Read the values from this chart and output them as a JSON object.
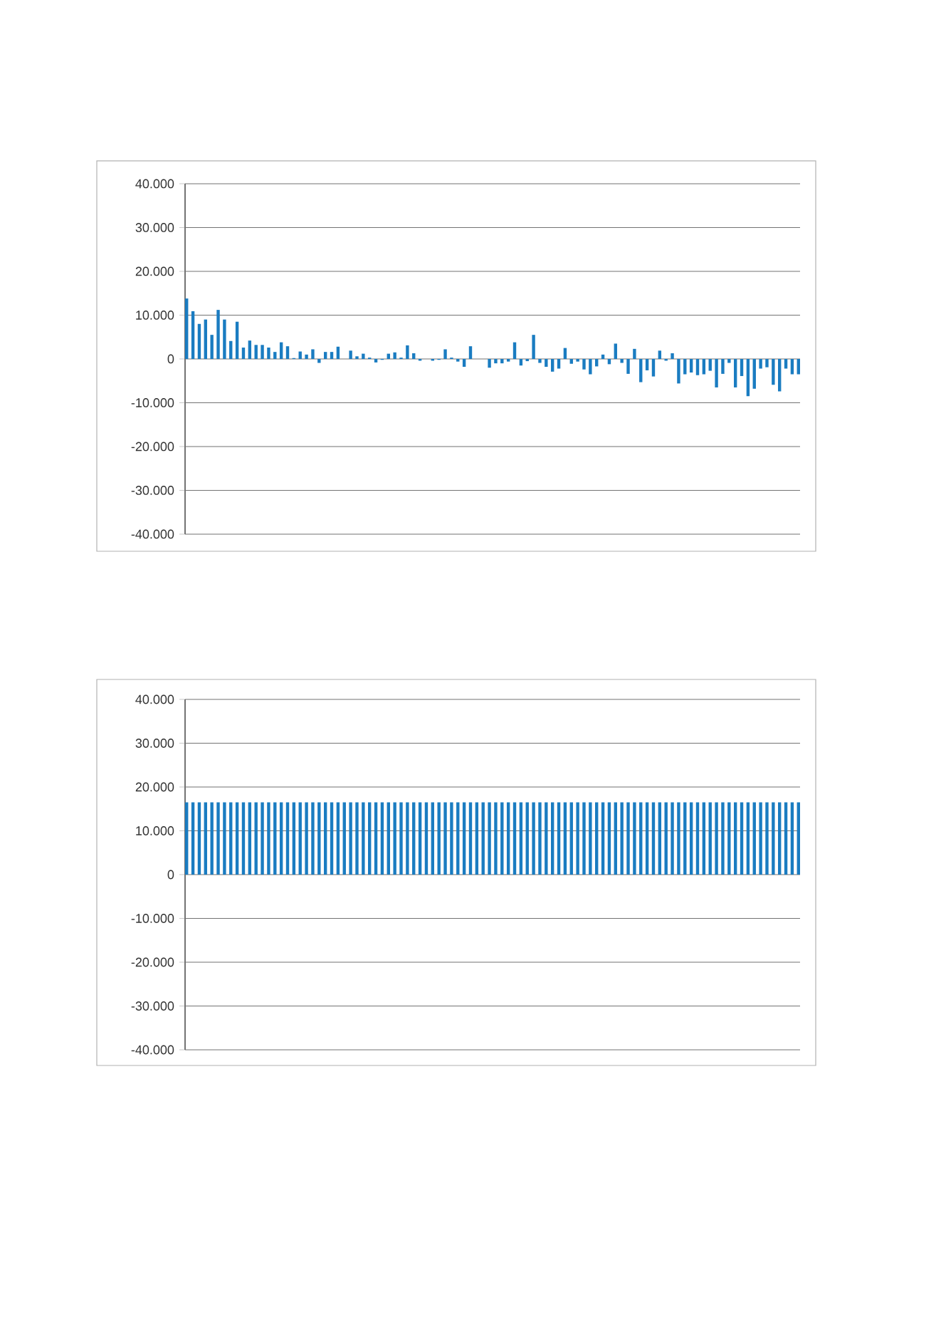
{
  "chart_data": [
    {
      "type": "bar",
      "categories": [
        null,
        null,
        null,
        null,
        null,
        null,
        null,
        null,
        null,
        null,
        null,
        null,
        null,
        null,
        null,
        null,
        null,
        null,
        null,
        null,
        null,
        null,
        null,
        null,
        null,
        null,
        null,
        null,
        null,
        null,
        null,
        null,
        null,
        null,
        null,
        null,
        null,
        null,
        null,
        null,
        null,
        null,
        null,
        null,
        null,
        null,
        null,
        null,
        null,
        null,
        null,
        null,
        null,
        null,
        null,
        null,
        null,
        null,
        null,
        null,
        null,
        null,
        null,
        null,
        null,
        null,
        null,
        null,
        null,
        null,
        null,
        null,
        null,
        null,
        null,
        null,
        null,
        null,
        null,
        null,
        null,
        null,
        null,
        null,
        null,
        null,
        null,
        null,
        null,
        null,
        null,
        null,
        null,
        null,
        null,
        null,
        null,
        null
      ],
      "values": [
        13800,
        10900,
        8000,
        9000,
        5500,
        11200,
        9000,
        4100,
        8500,
        2600,
        4200,
        3200,
        3200,
        2600,
        1600,
        3800,
        2900,
        200,
        1700,
        1000,
        2200,
        -900,
        1600,
        1600,
        2800,
        null,
        1900,
        600,
        1200,
        300,
        -800,
        -200,
        1200,
        1500,
        300,
        3100,
        1300,
        -400,
        null,
        -400,
        -200,
        2200,
        300,
        -600,
        -1800,
        2900,
        null,
        null,
        -2000,
        -1000,
        -1000,
        -600,
        3800,
        -1500,
        -500,
        5500,
        -900,
        -1800,
        -2900,
        -2200,
        2500,
        -1100,
        -600,
        -2400,
        -3500,
        -1700,
        1000,
        -1200,
        3500,
        -900,
        -3400,
        2300,
        -5300,
        -2600,
        -4000,
        1900,
        -400,
        1300,
        -5600,
        -3500,
        -3100,
        -3700,
        -3500,
        -2700,
        -6500,
        -3400,
        -900,
        -6500,
        -3900,
        -8500,
        -6800,
        -2200,
        -1900,
        -5900,
        -7400,
        -2200,
        -3500,
        -3500
      ],
      "color": "#1a7cc1",
      "grid": "y",
      "tick_labels": "y",
      "ylim": [
        -40000,
        40000
      ],
      "yticks": [
        {
          "value": -40000,
          "label": "-40.000"
        },
        {
          "value": -30000,
          "label": "-30.000"
        },
        {
          "value": -20000,
          "label": "-20.000"
        },
        {
          "value": -10000,
          "label": "-10.000"
        },
        0,
        {
          "value": 10000,
          "label": "10.000"
        },
        {
          "value": 20000,
          "label": "20.000"
        },
        {
          "value": 30000,
          "label": "30.000"
        },
        {
          "value": 40000,
          "label": "40.000"
        }
      ]
    },
    {
      "type": "bar",
      "categories": [
        null,
        null,
        null,
        null,
        null,
        null,
        null,
        null,
        null,
        null,
        null,
        null,
        null,
        null,
        null,
        null,
        null,
        null,
        null,
        null,
        null,
        null,
        null,
        null,
        null,
        null,
        null,
        null,
        null,
        null,
        null,
        null,
        null,
        null,
        null,
        null,
        null,
        null,
        null,
        null,
        null,
        null,
        null,
        null,
        null,
        null,
        null,
        null,
        null,
        null,
        null,
        null,
        null,
        null,
        null,
        null,
        null,
        null,
        null,
        null,
        null,
        null,
        null,
        null,
        null,
        null,
        null,
        null,
        null,
        null,
        null,
        null,
        null,
        null,
        null,
        null,
        null,
        null,
        null,
        null,
        null,
        null,
        null,
        null,
        null,
        null,
        null,
        null,
        null,
        null,
        null,
        null,
        null,
        null,
        null,
        null,
        null,
        null
      ],
      "values": [
        16500,
        16500,
        16500,
        16500,
        16500,
        16500,
        16500,
        16500,
        16500,
        16500,
        16500,
        16500,
        16500,
        16500,
        16500,
        16500,
        16500,
        16500,
        16500,
        16500,
        16500,
        16500,
        16500,
        16500,
        16500,
        16500,
        16500,
        16500,
        16500,
        16500,
        16500,
        16500,
        16500,
        16500,
        16500,
        16500,
        16500,
        16500,
        16500,
        16500,
        16500,
        16500,
        16500,
        16500,
        16500,
        16500,
        16500,
        16500,
        16500,
        16500,
        16500,
        16500,
        16500,
        16500,
        16500,
        16500,
        16500,
        16500,
        16500,
        16500,
        16500,
        16500,
        16500,
        16500,
        16500,
        16500,
        16500,
        16500,
        16500,
        16500,
        16500,
        16500,
        16500,
        16500,
        16500,
        16500,
        16500,
        16500,
        16500,
        16500,
        16500,
        16500,
        16500,
        16500,
        16500,
        16500,
        16500,
        16500,
        16500,
        16500,
        16500,
        16500,
        16500,
        16500,
        16500,
        16500,
        16500,
        16500
      ],
      "color": "#1a7cc1",
      "grid": "y",
      "tick_labels": "y",
      "ylim": [
        -40000,
        40000
      ],
      "yticks": [
        {
          "value": -40000,
          "label": "-40.000"
        },
        {
          "value": -30000,
          "label": "-30.000"
        },
        {
          "value": -20000,
          "label": "-20.000"
        },
        {
          "value": -10000,
          "label": "-10.000"
        },
        0,
        {
          "value": 10000,
          "label": "10.000"
        },
        {
          "value": 20000,
          "label": "20.000"
        },
        {
          "value": 30000,
          "label": "30.000"
        },
        {
          "value": 40000,
          "label": "40.000"
        }
      ]
    }
  ]
}
